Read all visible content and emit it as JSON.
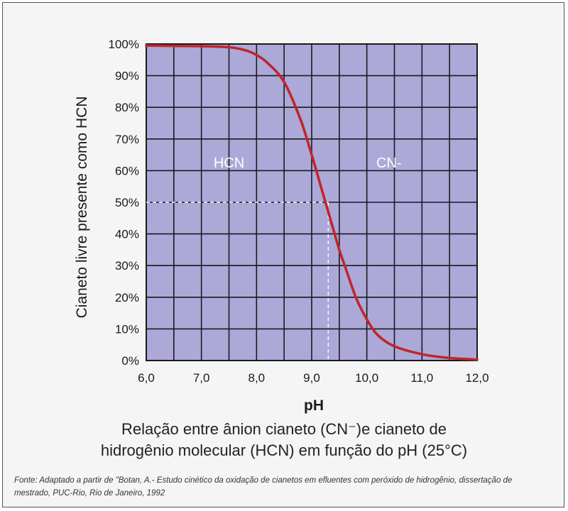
{
  "chart_data": {
    "type": "line",
    "title": "",
    "xlabel": "pH",
    "ylabel": "Cianeto livre presente como HCN",
    "xlim": [
      6.0,
      12.0
    ],
    "ylim": [
      0,
      100
    ],
    "x_ticks": [
      "6,0",
      "7,0",
      "8,0",
      "9,0",
      "10,0",
      "11,0",
      "12,0"
    ],
    "y_ticks": [
      "0%",
      "10%",
      "20%",
      "30%",
      "40%",
      "50%",
      "60%",
      "70%",
      "80%",
      "90%",
      "100%"
    ],
    "grid": true,
    "series": [
      {
        "name": "",
        "color": "#c0262c",
        "x": [
          6.0,
          6.5,
          7.0,
          7.5,
          7.8,
          8.0,
          8.2,
          8.5,
          8.8,
          9.0,
          9.1,
          9.2,
          9.3,
          9.4,
          9.5,
          9.6,
          9.8,
          10.0,
          10.2,
          10.5,
          11.0,
          11.5,
          12.0
        ],
        "y": [
          99.5,
          99.4,
          99.3,
          99.0,
          98.0,
          96.5,
          94.0,
          88.0,
          76.0,
          65.0,
          59.0,
          53.0,
          47.0,
          41.0,
          35.0,
          30.0,
          20.0,
          13.0,
          8.0,
          4.5,
          2.0,
          0.8,
          0.3
        ]
      }
    ],
    "reference_line": {
      "x": 9.3,
      "y": 50
    },
    "region_labels": [
      {
        "text": "HCN",
        "x": 7.5,
        "y": 61
      },
      {
        "text": "CN-",
        "x": 10.4,
        "y": 61
      }
    ],
    "colors": {
      "plot_bg": "#aca9d9",
      "grid": "#1a1a1a",
      "curve": "#c0262c"
    }
  },
  "caption": {
    "line1": "Relação entre ânion cianeto (CN⁻)e cianeto de",
    "line2": "hidrogênio molecular (HCN) em função do pH (25°C)"
  },
  "source": "Fonte: Adaptado a partir de \"Botan, A.- Estudo cinético da oxidação de cianetos em efluentes com peróxido de hidrogênio, dissertação de mestrado, PUC-Rio, Rio de Janeiro, 1992"
}
